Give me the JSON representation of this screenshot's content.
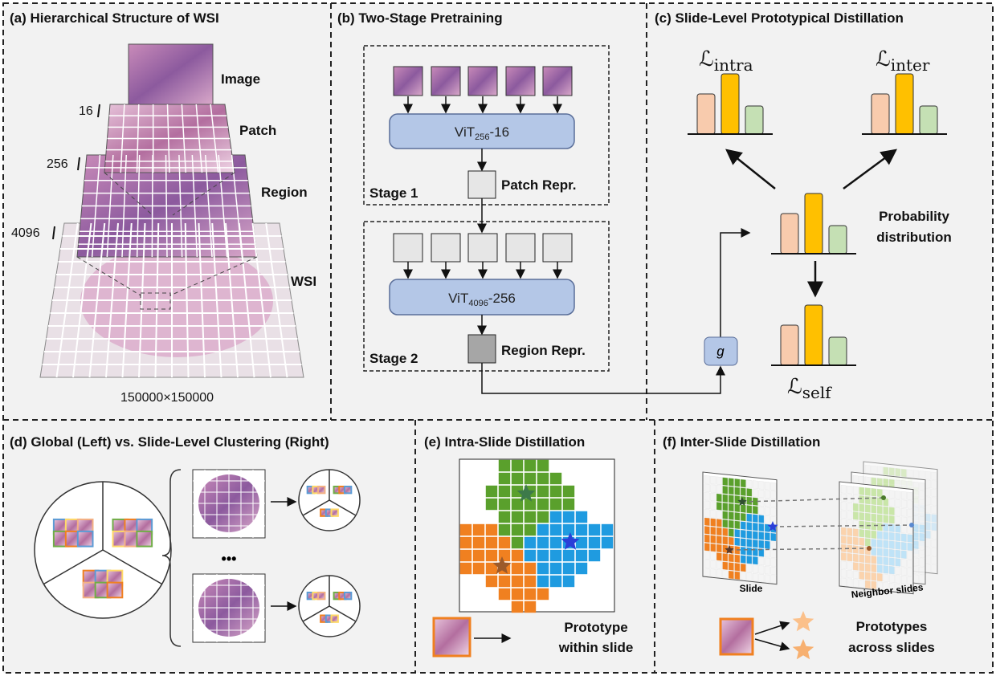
{
  "panel_a": {
    "title": "(a) Hierarchical Structure of WSI",
    "levels": [
      "Image",
      "Patch",
      "Region",
      "WSI"
    ],
    "sizes": [
      "16",
      "256",
      "4096"
    ],
    "dimensions": "150000×150000"
  },
  "panel_b": {
    "title": "(b) Two-Stage Pretraining",
    "stage1": {
      "model": {
        "base": "ViT",
        "sub": "256",
        "suffix": "-16"
      },
      "output": "Patch Repr.",
      "label": "Stage 1"
    },
    "stage2": {
      "model": {
        "base": "ViT",
        "sub": "4096",
        "suffix": "-256"
      },
      "output": "Region Repr.",
      "label": "Stage 2"
    }
  },
  "panel_c": {
    "title": "(c) Slide-Level Prototypical Distillation",
    "loss_intra": {
      "symbol": "ℒ",
      "sub": "intra"
    },
    "loss_inter": {
      "symbol": "ℒ",
      "sub": "inter"
    },
    "loss_self": {
      "symbol": "ℒ",
      "sub": "self"
    },
    "distribution": [
      "Probability",
      "distribution"
    ],
    "projector": "g"
  },
  "panel_d": {
    "title": "(d) Global (Left) vs. Slide-Level Clustering (Right)",
    "ellipsis": "•••"
  },
  "panel_e": {
    "title": "(e) Intra-Slide Distillation",
    "legend": [
      "Prototype",
      "within slide"
    ]
  },
  "panel_f": {
    "title": "(f) Inter-Slide Distillation",
    "slide": "Slide",
    "neighbors": "Neighbor slides",
    "legend": [
      "Prototypes",
      "across slides"
    ]
  }
}
